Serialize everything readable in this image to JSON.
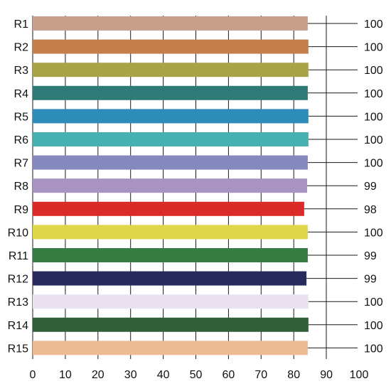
{
  "chart_data": {
    "type": "bar",
    "orientation": "horizontal",
    "categories": [
      "R1",
      "R2",
      "R3",
      "R4",
      "R5",
      "R6",
      "R7",
      "R8",
      "R9",
      "R10",
      "R11",
      "R12",
      "R13",
      "R14",
      "R15"
    ],
    "values": [
      84.3,
      84.5,
      84.5,
      84.3,
      84.5,
      84.5,
      84.3,
      84.1,
      83.2,
      84.3,
      84.3,
      83.9,
      84.5,
      84.5,
      84.3
    ],
    "value_labels": [
      "100",
      "100",
      "100",
      "100",
      "100",
      "100",
      "100",
      "99",
      "98",
      "100",
      "99",
      "99",
      "100",
      "100",
      "100"
    ],
    "colors": [
      "#c8a08c",
      "#c47f4c",
      "#a9a347",
      "#2e7a76",
      "#2e8db8",
      "#45b1b0",
      "#8589be",
      "#a893c2",
      "#da2b29",
      "#dfd64a",
      "#367c43",
      "#272b5c",
      "#eae3ef",
      "#315f38",
      "#ecbb95"
    ],
    "x_ticks": [
      0,
      10,
      20,
      30,
      40,
      50,
      60,
      70,
      80,
      90,
      100
    ],
    "xlim": [
      0,
      100
    ],
    "grid": "vertical",
    "title": "",
    "xlabel": "",
    "ylabel": ""
  }
}
